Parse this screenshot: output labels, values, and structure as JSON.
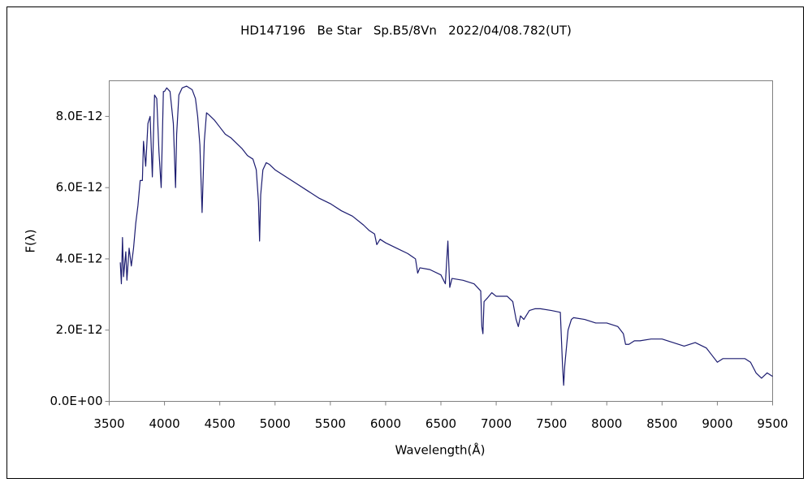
{
  "chart_data": {
    "type": "line",
    "title": "HD147196   Be Star   Sp.B5/8Vn   2022/04/08.782(UT)",
    "x_label": "Wavelength(Å)",
    "y_label": "F(λ)",
    "xlim": [
      3500,
      9500
    ],
    "xticks": [
      3500,
      4000,
      4500,
      5000,
      5500,
      6000,
      6500,
      7000,
      7500,
      8000,
      8500,
      9000,
      9500
    ],
    "ylim": [
      0,
      9e-12
    ],
    "yticks": [
      {
        "value": 0,
        "label": "0.0E+00"
      },
      {
        "value": 2e-12,
        "label": "2.0E-12"
      },
      {
        "value": 4e-12,
        "label": "4.0E-12"
      },
      {
        "value": 6e-12,
        "label": "6.0E-12"
      },
      {
        "value": 8e-12,
        "label": "8.0E-12"
      }
    ],
    "grid": false,
    "series": [
      {
        "color": "#1c1c70",
        "x": [
          3600,
          3610,
          3620,
          3630,
          3650,
          3660,
          3680,
          3700,
          3720,
          3740,
          3760,
          3780,
          3800,
          3810,
          3830,
          3850,
          3870,
          3890,
          3910,
          3930,
          3950,
          3970,
          3990,
          4000,
          4020,
          4050,
          4080,
          4100,
          4110,
          4130,
          4160,
          4200,
          4250,
          4280,
          4300,
          4320,
          4340,
          4360,
          4380,
          4400,
          4450,
          4500,
          4550,
          4600,
          4650,
          4700,
          4750,
          4800,
          4830,
          4850,
          4860,
          4870,
          4890,
          4920,
          4950,
          5000,
          5100,
          5200,
          5300,
          5400,
          5500,
          5600,
          5700,
          5800,
          5850,
          5900,
          5920,
          5950,
          6000,
          6100,
          6200,
          6270,
          6290,
          6310,
          6400,
          6500,
          6540,
          6563,
          6580,
          6600,
          6700,
          6800,
          6860,
          6870,
          6880,
          6890,
          6920,
          6960,
          7000,
          7100,
          7150,
          7180,
          7200,
          7220,
          7250,
          7300,
          7350,
          7400,
          7500,
          7580,
          7600,
          7610,
          7620,
          7650,
          7680,
          7700,
          7800,
          7900,
          8000,
          8100,
          8150,
          8170,
          8200,
          8250,
          8300,
          8400,
          8500,
          8600,
          8700,
          8800,
          8900,
          8950,
          9000,
          9050,
          9100,
          9200,
          9250,
          9300,
          9350,
          9400,
          9450,
          9500
        ],
        "values": [
          3.9e-12,
          3.3e-12,
          4.6e-12,
          3.5e-12,
          4.2e-12,
          3.4e-12,
          4.3e-12,
          3.8e-12,
          4.3e-12,
          5e-12,
          5.5e-12,
          6.2e-12,
          6.2e-12,
          7.3e-12,
          6.6e-12,
          7.8e-12,
          8e-12,
          6.3e-12,
          8.6e-12,
          8.5e-12,
          7e-12,
          6e-12,
          8.7e-12,
          8.7e-12,
          8.8e-12,
          8.7e-12,
          7.8e-12,
          6e-12,
          7.5e-12,
          8.6e-12,
          8.8e-12,
          8.85e-12,
          8.75e-12,
          8.5e-12,
          8e-12,
          7.2e-12,
          5.3e-12,
          7.3e-12,
          8.1e-12,
          8.05e-12,
          7.9e-12,
          7.7e-12,
          7.5e-12,
          7.4e-12,
          7.25e-12,
          7.1e-12,
          6.9e-12,
          6.8e-12,
          6.5e-12,
          5.6e-12,
          4.5e-12,
          5.8e-12,
          6.5e-12,
          6.7e-12,
          6.65e-12,
          6.5e-12,
          6.3e-12,
          6.1e-12,
          5.9e-12,
          5.7e-12,
          5.55e-12,
          5.35e-12,
          5.2e-12,
          4.95e-12,
          4.8e-12,
          4.7e-12,
          4.4e-12,
          4.55e-12,
          4.45e-12,
          4.3e-12,
          4.15e-12,
          4e-12,
          3.6e-12,
          3.75e-12,
          3.7e-12,
          3.55e-12,
          3.3e-12,
          4.5e-12,
          3.2e-12,
          3.45e-12,
          3.4e-12,
          3.3e-12,
          3.1e-12,
          2.1e-12,
          1.9e-12,
          2.8e-12,
          2.9e-12,
          3.05e-12,
          2.95e-12,
          2.95e-12,
          2.8e-12,
          2.3e-12,
          2.1e-12,
          2.4e-12,
          2.3e-12,
          2.55e-12,
          2.6e-12,
          2.6e-12,
          2.55e-12,
          2.5e-12,
          1e-12,
          4.5e-13,
          1e-12,
          2e-12,
          2.3e-12,
          2.35e-12,
          2.3e-12,
          2.2e-12,
          2.2e-12,
          2.1e-12,
          1.9e-12,
          1.6e-12,
          1.6e-12,
          1.7e-12,
          1.7e-12,
          1.75e-12,
          1.75e-12,
          1.65e-12,
          1.55e-12,
          1.65e-12,
          1.5e-12,
          1.3e-12,
          1.1e-12,
          1.2e-12,
          1.2e-12,
          1.2e-12,
          1.2e-12,
          1.1e-12,
          8e-13,
          6.5e-13,
          8e-13,
          7e-13
        ]
      }
    ]
  }
}
